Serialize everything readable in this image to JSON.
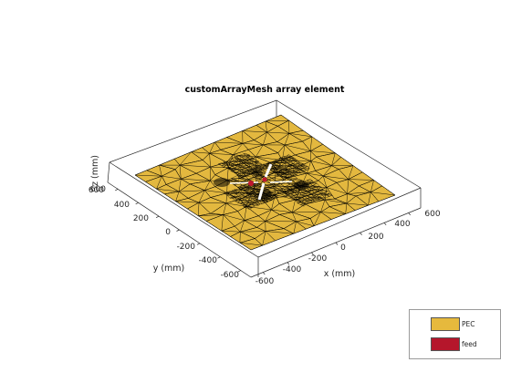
{
  "title": "customArrayMesh array element",
  "axes": {
    "xlabel": "x (mm)",
    "ylabel": "y (mm)",
    "zlabel": "z (mm)",
    "x_ticks": [
      "-600",
      "-400",
      "-200",
      "0",
      "200",
      "400",
      "600"
    ],
    "y_ticks": [
      "600",
      "400",
      "200",
      "0",
      "-200",
      "-400",
      "-600"
    ],
    "z_ticks": [
      "600"
    ]
  },
  "legend": {
    "items": [
      {
        "label": "PEC",
        "color": "#e6b93d"
      },
      {
        "label": "feed",
        "color": "#b5162b"
      }
    ]
  },
  "colors": {
    "plate": "#e3b83f",
    "mesh": "#000000",
    "feed": "#c0182e",
    "box": "#262626"
  }
}
